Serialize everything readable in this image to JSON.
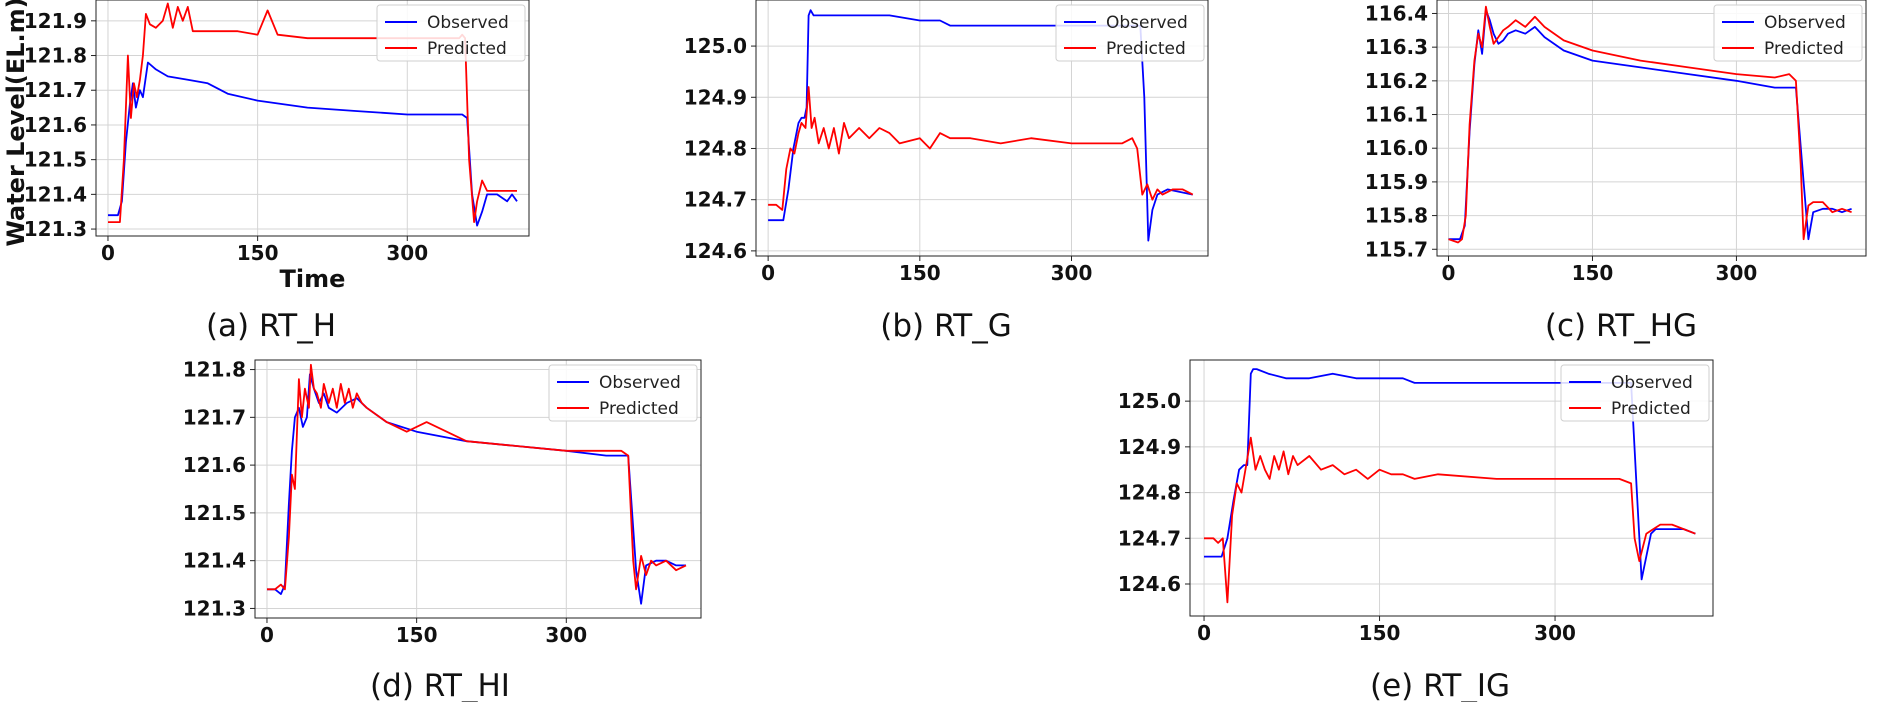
{
  "chart_data": [
    {
      "type": "line",
      "caption": "(a) RT_H",
      "ylabel": "Water Level(EL.m)",
      "xlabel": "Time",
      "xlim": [
        -12,
        422
      ],
      "ylim": [
        121.28,
        121.96
      ],
      "xticks": [
        0,
        150,
        300
      ],
      "yticks": [
        "121.3",
        "121.4",
        "121.5",
        "121.6",
        "121.7",
        "121.8",
        "121.9"
      ],
      "grid": true,
      "legend": "top-right",
      "series": [
        {
          "name": "Observed",
          "color": "#0000ff",
          "x": [
            0,
            10,
            14,
            18,
            22,
            25,
            28,
            32,
            35,
            40,
            48,
            60,
            80,
            100,
            120,
            150,
            200,
            250,
            300,
            340,
            355,
            360,
            365,
            370,
            375,
            380,
            390,
            400,
            405,
            410
          ],
          "y": [
            121.34,
            121.34,
            121.38,
            121.55,
            121.66,
            121.72,
            121.65,
            121.7,
            121.68,
            121.78,
            121.76,
            121.74,
            121.73,
            121.72,
            121.69,
            121.67,
            121.65,
            121.64,
            121.63,
            121.63,
            121.63,
            121.62,
            121.4,
            121.31,
            121.35,
            121.4,
            121.4,
            121.38,
            121.4,
            121.38
          ]
        },
        {
          "name": "Predicted",
          "color": "#ff0000",
          "x": [
            0,
            12,
            16,
            20,
            23,
            26,
            29,
            32,
            35,
            38,
            42,
            48,
            55,
            60,
            65,
            70,
            75,
            80,
            85,
            100,
            130,
            150,
            160,
            170,
            200,
            250,
            300,
            340,
            352,
            355,
            358,
            362,
            367,
            370,
            375,
            380,
            390,
            405,
            410
          ],
          "y": [
            121.32,
            121.32,
            121.5,
            121.8,
            121.62,
            121.72,
            121.68,
            121.73,
            121.8,
            121.92,
            121.89,
            121.88,
            121.9,
            121.95,
            121.88,
            121.94,
            121.9,
            121.94,
            121.87,
            121.87,
            121.87,
            121.86,
            121.93,
            121.86,
            121.85,
            121.85,
            121.85,
            121.85,
            121.85,
            121.86,
            121.85,
            121.5,
            121.32,
            121.38,
            121.44,
            121.41,
            121.41,
            121.41,
            121.41
          ]
        }
      ]
    },
    {
      "type": "line",
      "caption": "(b) RT_G",
      "ylabel": "",
      "xlabel": "",
      "xlim": [
        -12,
        435
      ],
      "ylim": [
        124.59,
        125.09
      ],
      "xticks": [
        0,
        150,
        300
      ],
      "yticks": [
        "124.6",
        "124.7",
        "124.8",
        "124.9",
        "125.0"
      ],
      "grid": true,
      "legend": "top-right",
      "series": [
        {
          "name": "Observed",
          "color": "#0000ff",
          "x": [
            0,
            15,
            20,
            25,
            30,
            33,
            36,
            38,
            40,
            42,
            45,
            60,
            90,
            120,
            150,
            170,
            180,
            220,
            260,
            300,
            340,
            368,
            372,
            376,
            380,
            385,
            395,
            420
          ],
          "y": [
            124.66,
            124.66,
            124.72,
            124.8,
            124.85,
            124.86,
            124.86,
            124.88,
            125.06,
            125.07,
            125.06,
            125.06,
            125.06,
            125.06,
            125.05,
            125.05,
            125.04,
            125.04,
            125.04,
            125.04,
            125.04,
            125.04,
            124.9,
            124.62,
            124.68,
            124.71,
            124.72,
            124.71
          ]
        },
        {
          "name": "Predicted",
          "color": "#ff0000",
          "x": [
            0,
            8,
            14,
            18,
            22,
            26,
            30,
            33,
            37,
            40,
            43,
            46,
            50,
            55,
            60,
            65,
            70,
            75,
            80,
            90,
            100,
            110,
            120,
            130,
            150,
            160,
            170,
            180,
            200,
            230,
            260,
            300,
            330,
            350,
            360,
            365,
            370,
            375,
            380,
            385,
            390,
            400,
            410,
            420
          ],
          "y": [
            124.69,
            124.69,
            124.68,
            124.76,
            124.8,
            124.79,
            124.83,
            124.85,
            124.84,
            124.92,
            124.84,
            124.86,
            124.81,
            124.84,
            124.8,
            124.84,
            124.79,
            124.85,
            124.82,
            124.84,
            124.82,
            124.84,
            124.83,
            124.81,
            124.82,
            124.8,
            124.83,
            124.82,
            124.82,
            124.81,
            124.82,
            124.81,
            124.81,
            124.81,
            124.82,
            124.8,
            124.71,
            124.73,
            124.7,
            124.72,
            124.71,
            124.72,
            124.72,
            124.71
          ]
        }
      ]
    },
    {
      "type": "line",
      "caption": "(c) RT_HG",
      "ylabel": "",
      "xlabel": "",
      "xlim": [
        -12,
        435
      ],
      "ylim": [
        115.68,
        116.44
      ],
      "xticks": [
        0,
        150,
        300
      ],
      "yticks": [
        "115.7",
        "115.8",
        "115.9",
        "116.0",
        "116.1",
        "116.2",
        "116.3",
        "116.4"
      ],
      "grid": true,
      "legend": "top-right",
      "series": [
        {
          "name": "Observed",
          "color": "#0000ff",
          "x": [
            0,
            8,
            12,
            17,
            22,
            27,
            31,
            35,
            39,
            43,
            47,
            52,
            57,
            62,
            70,
            80,
            90,
            100,
            120,
            150,
            200,
            250,
            300,
            340,
            355,
            362,
            370,
            375,
            380,
            390,
            400,
            410,
            420
          ],
          "y": [
            115.73,
            115.73,
            115.73,
            115.77,
            116.05,
            116.25,
            116.35,
            116.28,
            116.41,
            116.38,
            116.34,
            116.31,
            116.32,
            116.34,
            116.35,
            116.34,
            116.36,
            116.33,
            116.29,
            116.26,
            116.24,
            116.22,
            116.2,
            116.18,
            116.18,
            116.18,
            115.9,
            115.73,
            115.81,
            115.82,
            115.82,
            115.81,
            115.82
          ]
        },
        {
          "name": "Predicted",
          "color": "#ff0000",
          "x": [
            0,
            10,
            14,
            18,
            22,
            27,
            31,
            35,
            39,
            43,
            47,
            52,
            57,
            62,
            70,
            80,
            90,
            100,
            120,
            150,
            200,
            250,
            300,
            340,
            355,
            362,
            367,
            370,
            375,
            380,
            390,
            400,
            410,
            420
          ],
          "y": [
            115.73,
            115.72,
            115.73,
            115.8,
            116.07,
            116.26,
            116.34,
            116.3,
            116.42,
            116.36,
            116.31,
            116.33,
            116.35,
            116.36,
            116.38,
            116.36,
            116.39,
            116.36,
            116.32,
            116.29,
            116.26,
            116.24,
            116.22,
            116.21,
            116.22,
            116.2,
            115.95,
            115.73,
            115.83,
            115.84,
            115.84,
            115.81,
            115.82,
            115.81
          ]
        }
      ]
    },
    {
      "type": "line",
      "caption": "(d) RT_HI",
      "ylabel": "",
      "xlabel": "",
      "xlim": [
        -12,
        435
      ],
      "ylim": [
        121.28,
        121.82
      ],
      "xticks": [
        0,
        150,
        300
      ],
      "yticks": [
        "121.3",
        "121.4",
        "121.5",
        "121.6",
        "121.7",
        "121.8"
      ],
      "grid": true,
      "legend": "top-right",
      "series": [
        {
          "name": "Observed",
          "color": "#0000ff",
          "x": [
            0,
            8,
            14,
            18,
            22,
            25,
            28,
            32,
            36,
            40,
            43,
            47,
            52,
            57,
            62,
            70,
            80,
            90,
            100,
            120,
            150,
            200,
            250,
            300,
            340,
            355,
            362,
            370,
            375,
            380,
            390,
            400,
            410,
            420
          ],
          "y": [
            121.34,
            121.34,
            121.33,
            121.35,
            121.52,
            121.63,
            121.7,
            121.72,
            121.68,
            121.7,
            121.79,
            121.76,
            121.73,
            121.75,
            121.72,
            121.71,
            121.73,
            121.74,
            121.72,
            121.69,
            121.67,
            121.65,
            121.64,
            121.63,
            121.62,
            121.62,
            121.62,
            121.38,
            121.31,
            121.39,
            121.4,
            121.4,
            121.39,
            121.39
          ]
        },
        {
          "name": "Predicted",
          "color": "#ff0000",
          "x": [
            0,
            8,
            14,
            18,
            22,
            25,
            28,
            32,
            35,
            38,
            42,
            44,
            47,
            50,
            54,
            57,
            62,
            66,
            70,
            74,
            78,
            82,
            86,
            90,
            95,
            100,
            120,
            140,
            160,
            200,
            250,
            300,
            340,
            355,
            362,
            367,
            370,
            375,
            380,
            385,
            390,
            400,
            410,
            420
          ],
          "y": [
            121.34,
            121.34,
            121.35,
            121.34,
            121.45,
            121.58,
            121.55,
            121.78,
            121.7,
            121.76,
            121.72,
            121.81,
            121.76,
            121.75,
            121.72,
            121.77,
            121.73,
            121.76,
            121.72,
            121.77,
            121.73,
            121.76,
            121.72,
            121.75,
            121.73,
            121.72,
            121.69,
            121.67,
            121.69,
            121.65,
            121.64,
            121.63,
            121.63,
            121.63,
            121.62,
            121.4,
            121.34,
            121.41,
            121.37,
            121.4,
            121.39,
            121.4,
            121.38,
            121.39
          ]
        }
      ]
    },
    {
      "type": "line",
      "caption": "(e) RT_IG",
      "ylabel": "",
      "xlabel": "",
      "xlim": [
        -12,
        435
      ],
      "ylim": [
        124.53,
        125.09
      ],
      "xticks": [
        0,
        150,
        300
      ],
      "yticks": [
        "124.6",
        "124.7",
        "124.8",
        "124.9",
        "125.0"
      ],
      "grid": true,
      "legend": "top-right",
      "series": [
        {
          "name": "Observed",
          "color": "#0000ff",
          "x": [
            0,
            15,
            20,
            25,
            30,
            34,
            37,
            40,
            42,
            45,
            55,
            70,
            90,
            110,
            130,
            150,
            170,
            180,
            220,
            260,
            300,
            340,
            365,
            370,
            374,
            378,
            382,
            386,
            395,
            410,
            420
          ],
          "y": [
            124.66,
            124.66,
            124.7,
            124.78,
            124.85,
            124.86,
            124.86,
            125.06,
            125.07,
            125.07,
            125.06,
            125.05,
            125.05,
            125.06,
            125.05,
            125.05,
            125.05,
            125.04,
            125.04,
            125.04,
            125.04,
            125.04,
            125.04,
            124.8,
            124.61,
            124.66,
            124.71,
            124.72,
            124.72,
            124.72,
            124.71
          ]
        },
        {
          "name": "Predicted",
          "color": "#ff0000",
          "x": [
            0,
            8,
            12,
            16,
            20,
            24,
            28,
            32,
            36,
            40,
            44,
            48,
            52,
            56,
            60,
            64,
            68,
            72,
            76,
            80,
            90,
            100,
            110,
            120,
            130,
            140,
            150,
            160,
            170,
            180,
            200,
            250,
            300,
            340,
            355,
            365,
            368,
            372,
            378,
            384,
            390,
            400,
            410,
            420
          ],
          "y": [
            124.7,
            124.7,
            124.69,
            124.7,
            124.56,
            124.75,
            124.82,
            124.8,
            124.86,
            124.92,
            124.85,
            124.88,
            124.85,
            124.83,
            124.88,
            124.85,
            124.89,
            124.84,
            124.88,
            124.86,
            124.88,
            124.85,
            124.86,
            124.84,
            124.85,
            124.83,
            124.85,
            124.84,
            124.84,
            124.83,
            124.84,
            124.83,
            124.83,
            124.83,
            124.83,
            124.82,
            124.7,
            124.65,
            124.71,
            124.72,
            124.73,
            124.73,
            124.72,
            124.71
          ]
        }
      ]
    }
  ]
}
